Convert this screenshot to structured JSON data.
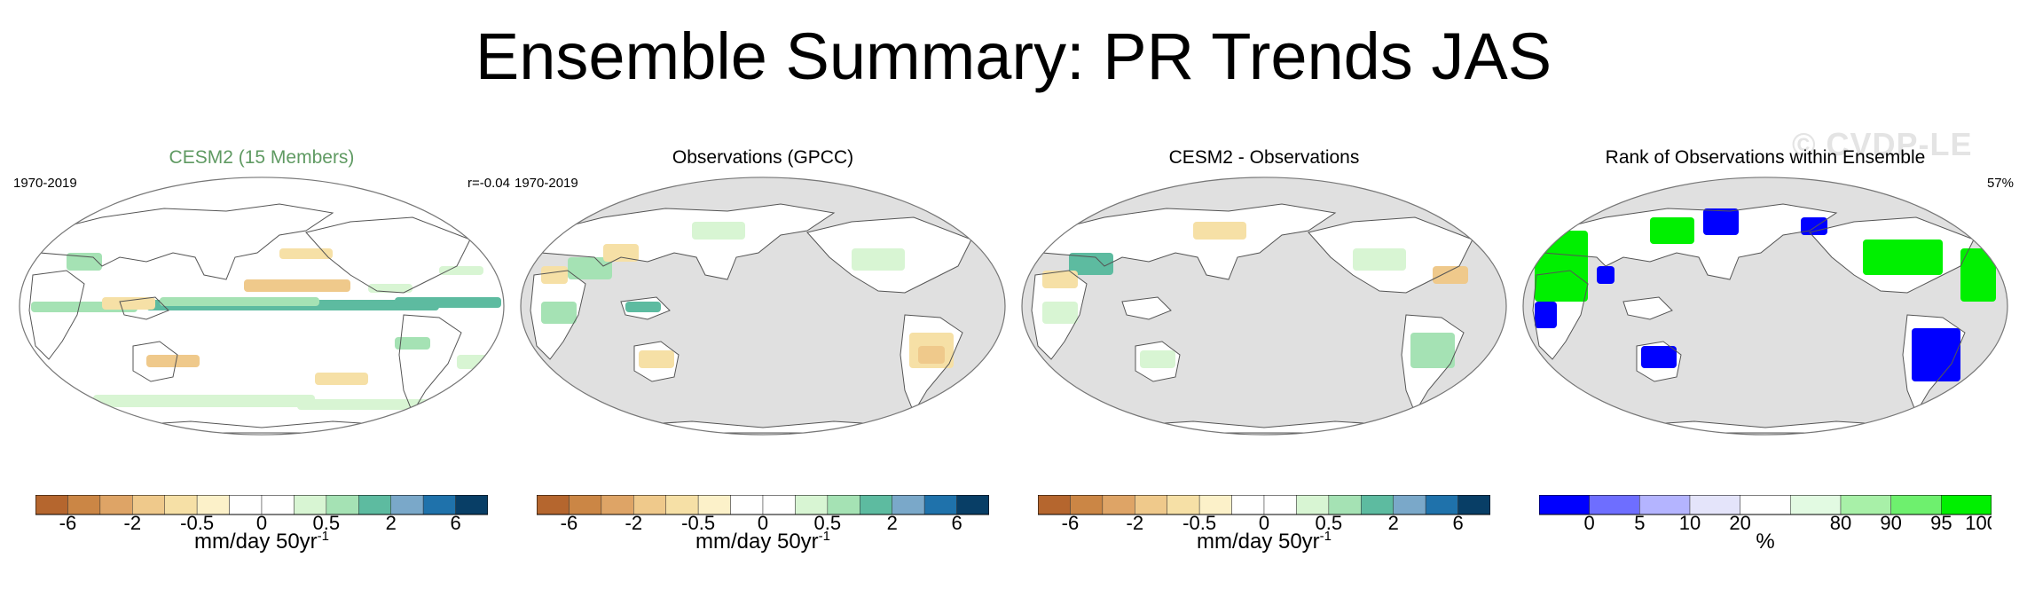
{
  "figure": {
    "title": "Ensemble Summary: PR Trends JAS",
    "watermark": "© CVDP-LE"
  },
  "palettes": {
    "trend": [
      "#b5662e",
      "#cb8645",
      "#dea466",
      "#efc98b",
      "#f6e0a6",
      "#fcf1c9",
      "#ffffff",
      "#ffffff",
      "#d8f5d3",
      "#a5e2b4",
      "#5dbba0",
      "#7aa8c9",
      "#1f72ab",
      "#083e66"
    ],
    "rank": [
      "#0000ff",
      "#6e6eff",
      "#b4b4ff",
      "#e4e4fa",
      "#ffffff",
      "#e2fae2",
      "#a8f0a8",
      "#6ef06e",
      "#00f000"
    ],
    "ocean_masked": "#e0e0e0",
    "coast": "#555555"
  },
  "panels": [
    {
      "title": "CESM2 (15 Members)",
      "left_label": "1970-2019",
      "right_label": "r=-0.04",
      "field": "model",
      "colorbar": {
        "ticks": [
          "-6",
          "-2",
          "-0.5",
          "0",
          "0.5",
          "2",
          "6"
        ],
        "unit": "mm/day 50yr",
        "unit_sup": "-1"
      }
    },
    {
      "title": "Observations (GPCC)",
      "left_label": "1970-2019",
      "right_label": "",
      "field": "obs",
      "colorbar": {
        "ticks": [
          "-6",
          "-2",
          "-0.5",
          "0",
          "0.5",
          "2",
          "6"
        ],
        "unit": "mm/day 50yr",
        "unit_sup": "-1"
      }
    },
    {
      "title": "CESM2 - Observations",
      "left_label": "",
      "right_label": "",
      "field": "diff",
      "colorbar": {
        "ticks": [
          "-6",
          "-2",
          "-0.5",
          "0",
          "0.5",
          "2",
          "6"
        ],
        "unit": "mm/day 50yr",
        "unit_sup": "-1"
      }
    },
    {
      "title": "Rank of Observations within Ensemble",
      "left_label": "",
      "right_label": "57%",
      "field": "rank",
      "colorbar": {
        "ticks": [
          "0",
          "5",
          "10",
          "20",
          "80",
          "90",
          "95",
          "100"
        ],
        "unit": "%",
        "unit_sup": ""
      }
    }
  ],
  "chart_data": [
    {
      "type": "heatmap",
      "title": "CESM2 (15 Members)",
      "period": "1970-2019",
      "pattern_correlation": "r=-0.04",
      "variable": "PR trend",
      "season": "JAS",
      "color_levels": [
        "-6",
        "-2",
        "-0.5",
        "0",
        "0.5",
        "2",
        "6"
      ],
      "units": "mm/day 50yr-1",
      "projection": "Robinson (Pacific-centred)",
      "features": [
        {
          "region": "Central equatorial Pacific (ITCZ)",
          "trend": 2
        },
        {
          "region": "Equatorial Atlantic/Africa band",
          "trend": 2
        },
        {
          "region": "Northern tropical Pacific",
          "trend": -2
        },
        {
          "region": "Southern Ocean band",
          "trend": 0.5
        }
      ]
    },
    {
      "type": "heatmap",
      "title": "Observations (GPCC)",
      "period": "1970-2019",
      "units": "mm/day 50yr-1",
      "ocean_masked": true,
      "features": [
        {
          "region": "South America (interior)",
          "trend": -0.5
        },
        {
          "region": "Australia",
          "trend": -0.5
        },
        {
          "region": "Maritime continent",
          "trend": 2
        }
      ]
    },
    {
      "type": "heatmap",
      "title": "CESM2 - Observations",
      "units": "mm/day 50yr-1",
      "ocean_masked": true,
      "features": [
        {
          "region": "South America (interior)",
          "trend": 2
        },
        {
          "region": "South Asia",
          "trend": 2
        }
      ]
    },
    {
      "type": "heatmap",
      "title": "Rank of Observations within Ensemble",
      "summary": "57%",
      "units": "%",
      "color_levels": [
        "0",
        "5",
        "10",
        "20",
        "80",
        "90",
        "95",
        "100"
      ],
      "features": [
        {
          "region": "South America",
          "rank": 0
        },
        {
          "region": "Australia",
          "rank": 0
        },
        {
          "region": "Africa / Europe",
          "rank": 100
        },
        {
          "region": "North America",
          "rank": 100
        }
      ]
    }
  ]
}
